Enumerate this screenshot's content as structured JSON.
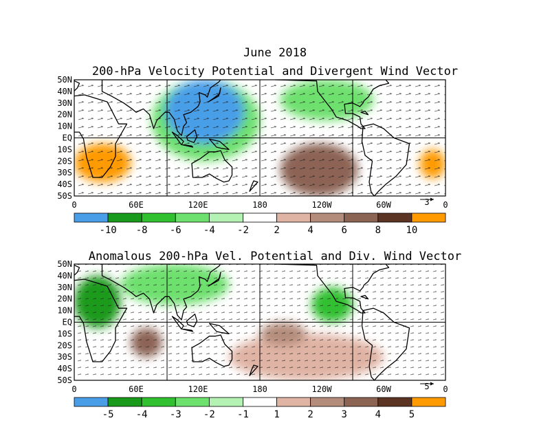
{
  "header": {
    "title": "June 2018"
  },
  "panels": [
    {
      "title": "200-hPa Velocity Potential and Divergent Wind Vector",
      "vector_ref": "3",
      "colorbar": {
        "labels": [
          "-10",
          "-8",
          "-6",
          "-4",
          "-2",
          "2",
          "4",
          "6",
          "8",
          "10"
        ],
        "colors": [
          "#4a9ee8",
          "#1a9a1a",
          "#30c030",
          "#6ee06e",
          "#b4f2b4",
          "#ffffff",
          "#e0b4a4",
          "#b48c7c",
          "#8c6454",
          "#5c3424",
          "#ff9a00"
        ]
      }
    },
    {
      "title": "Anomalous 200-hPa Vel. Potential and Div. Wind Vector",
      "vector_ref": "5",
      "colorbar": {
        "labels": [
          "-5",
          "-4",
          "-3",
          "-2",
          "-1",
          "1",
          "2",
          "3",
          "4",
          "5"
        ],
        "colors": [
          "#4a9ee8",
          "#1a9a1a",
          "#30c030",
          "#6ee06e",
          "#b4f2b4",
          "#ffffff",
          "#e0b4a4",
          "#b48c7c",
          "#8c6454",
          "#5c3424",
          "#ff9a00"
        ]
      }
    }
  ],
  "axes": {
    "lat_labels": [
      "50N",
      "40N",
      "30N",
      "20N",
      "10N",
      "EQ",
      "10S",
      "20S",
      "30S",
      "40S",
      "50S"
    ],
    "lon_labels": [
      "0",
      "60E",
      "120E",
      "180",
      "120W",
      "60W",
      "0"
    ]
  },
  "chart_data": [
    {
      "type": "heatmap",
      "title": "200-hPa Velocity Potential and Divergent Wind Vector",
      "xlim": [
        0,
        360
      ],
      "ylim": [
        -50,
        50
      ],
      "color_levels": [
        -10,
        -8,
        -6,
        -4,
        -2,
        2,
        4,
        6,
        8,
        10
      ],
      "regions": [
        {
          "name": "western-pacific-strong-negative",
          "lon_range": [
            88,
            165
          ],
          "lat_range": [
            -5,
            50
          ],
          "value": -11
        },
        {
          "name": "indo-pacific-negative",
          "lon_range": [
            75,
            180
          ],
          "lat_range": [
            -20,
            50
          ],
          "value": -5
        },
        {
          "name": "southern-africa-strong-positive",
          "lon_range": [
            0,
            55
          ],
          "lat_range": [
            -38,
            -5
          ],
          "value": 11
        },
        {
          "name": "south-atlantic-strong-positive",
          "lon_range": [
            335,
            360
          ],
          "lat_range": [
            -35,
            -10
          ],
          "value": 11
        },
        {
          "name": "east-pacific-positive",
          "lon_range": [
            200,
            275
          ],
          "lat_range": [
            -50,
            -5
          ],
          "value": 7
        },
        {
          "name": "north-america-negative",
          "lon_range": [
            200,
            290
          ],
          "lat_range": [
            15,
            50
          ],
          "value": -4
        }
      ]
    },
    {
      "type": "heatmap",
      "title": "Anomalous 200-hPa Vel. Potential and Div. Wind Vector",
      "xlim": [
        0,
        360
      ],
      "ylim": [
        -50,
        50
      ],
      "color_levels": [
        -5,
        -4,
        -3,
        -2,
        -1,
        1,
        2,
        3,
        4,
        5
      ],
      "regions": [
        {
          "name": "africa-negative",
          "lon_range": [
            0,
            45
          ],
          "lat_range": [
            -5,
            40
          ],
          "value": -4
        },
        {
          "name": "asia-negative",
          "lon_range": [
            45,
            150
          ],
          "lat_range": [
            15,
            50
          ],
          "value": -2.5
        },
        {
          "name": "central-america-negative",
          "lon_range": [
            230,
            270
          ],
          "lat_range": [
            0,
            30
          ],
          "value": -3
        },
        {
          "name": "indian-ocean-positive",
          "lon_range": [
            55,
            85
          ],
          "lat_range": [
            -30,
            -5
          ],
          "value": 4
        },
        {
          "name": "central-pacific-positive",
          "lon_range": [
            180,
            225
          ],
          "lat_range": [
            -20,
            0
          ],
          "value": 3
        },
        {
          "name": "south-pacific-positive",
          "lon_range": [
            150,
            300
          ],
          "lat_range": [
            -50,
            -10
          ],
          "value": 2
        }
      ]
    }
  ]
}
